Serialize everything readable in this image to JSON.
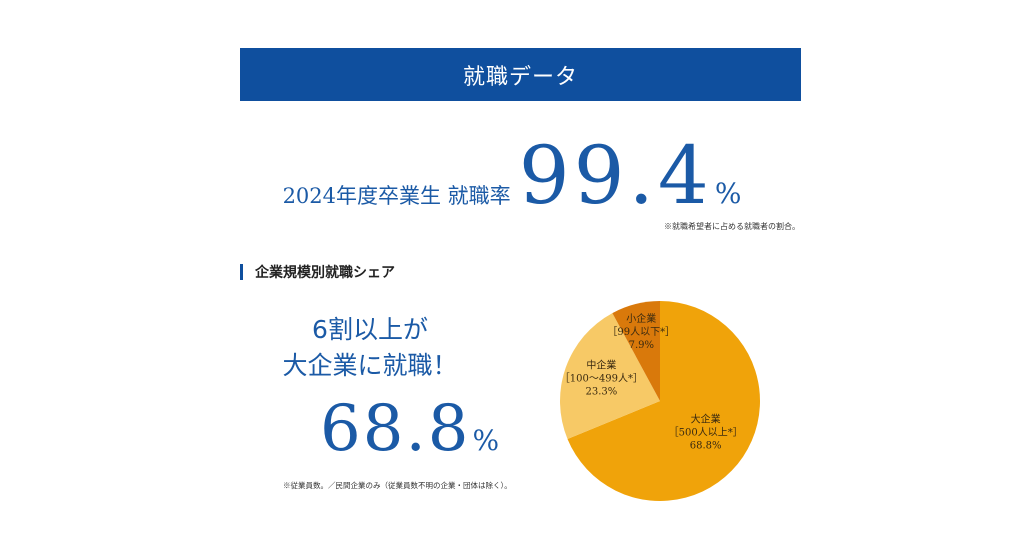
{
  "banner": {
    "title": "就職データ"
  },
  "employment_rate": {
    "label": "2024年度卒業生 就職率",
    "value": "99.4",
    "unit": "%",
    "note": "※就職希望者に占める就職者の割合。"
  },
  "section": {
    "title": "企業規模別就職シェア"
  },
  "highlight": {
    "line1": "6割以上が",
    "line2": "大企業に就職！",
    "value": "68.8",
    "unit": "%",
    "note": "※従業員数。／民間企業のみ（従業員数不明の企業・団体は除く）。"
  },
  "colors": {
    "brand": "#0f4f9e",
    "large": "#f0a30a",
    "medium": "#f7c966",
    "small": "#d9790b"
  },
  "chart_data": {
    "type": "pie",
    "slices": [
      {
        "name": "大企業",
        "range": "［500人以上*］",
        "value": 68.8,
        "label": "68.8%",
        "color": "#f0a30a"
      },
      {
        "name": "中企業",
        "range": "［100〜499人*］",
        "value": 23.3,
        "label": "23.3%",
        "color": "#f7c966"
      },
      {
        "name": "小企業",
        "range": "［99人以下*］",
        "value": 7.9,
        "label": "7.9%",
        "color": "#d9790b"
      }
    ],
    "start_angle_deg": 0,
    "direction": "clockwise",
    "legend": "none"
  }
}
